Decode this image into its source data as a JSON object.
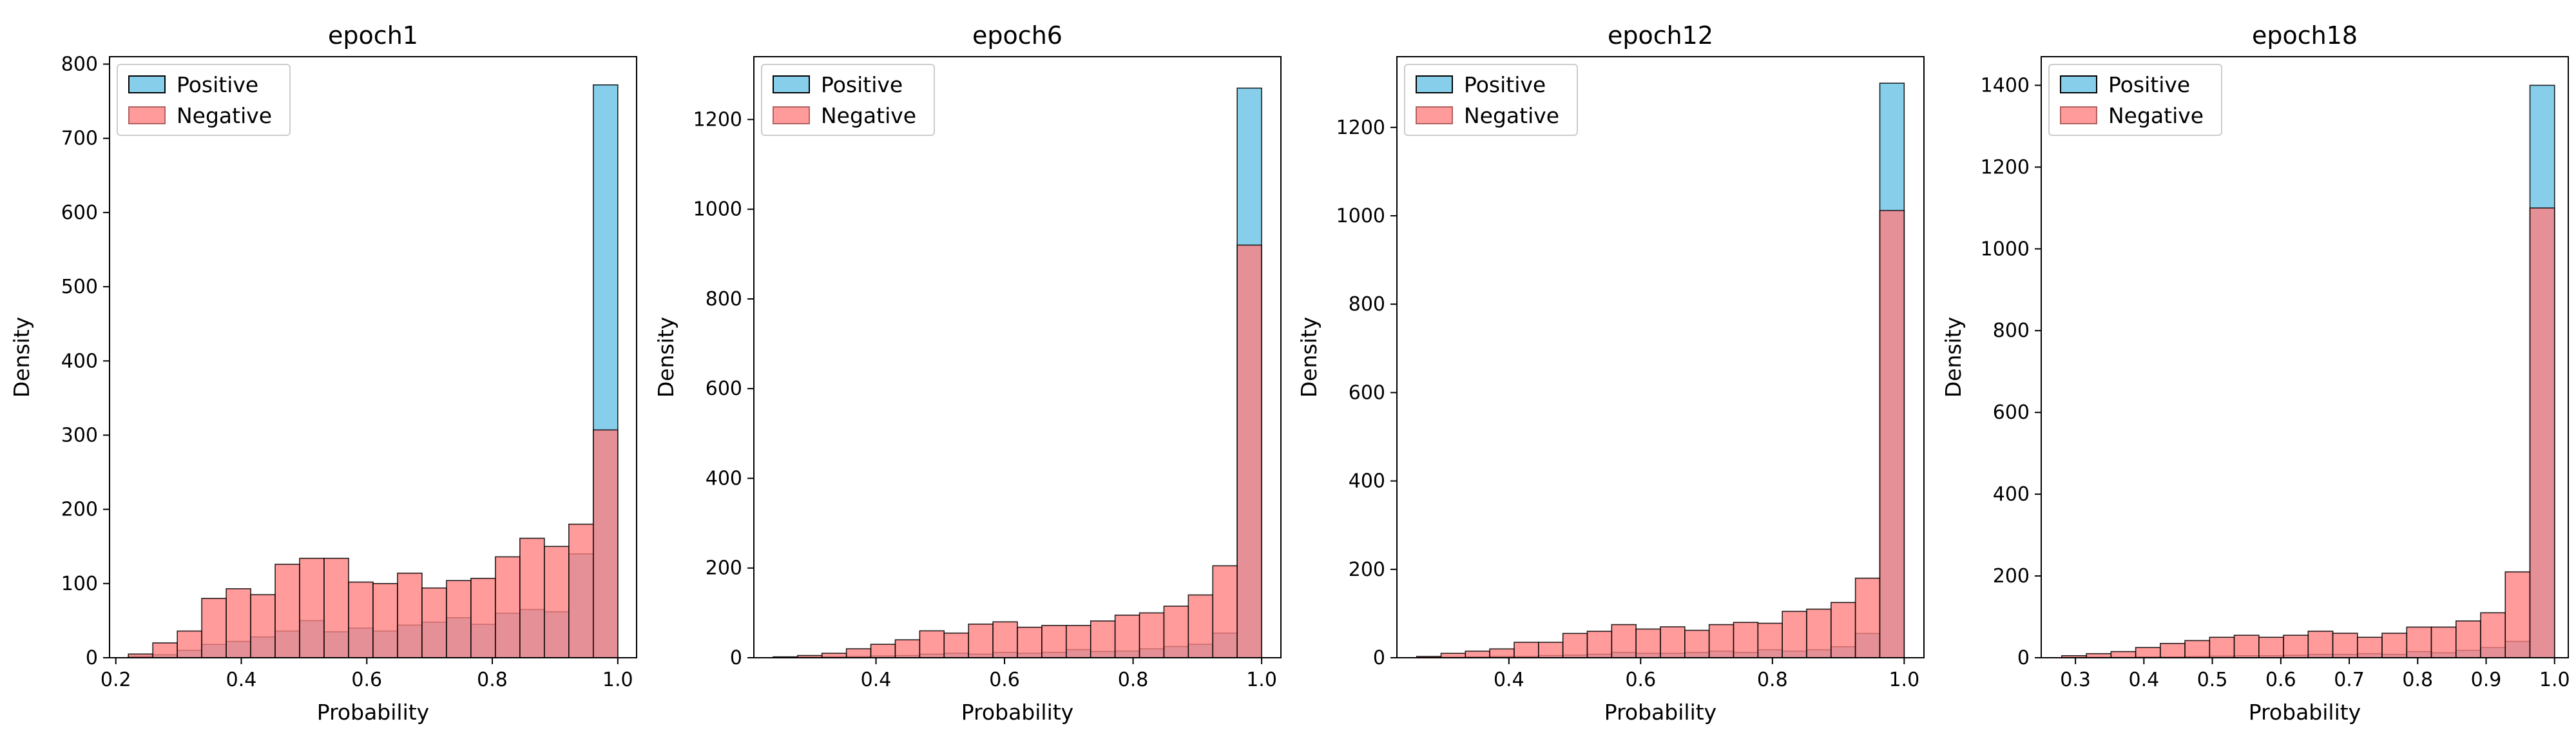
{
  "colors": {
    "positive_fill": "#87CEEB",
    "negative_fill": "#FF7F7F",
    "edge": "#000000"
  },
  "chart_data": [
    {
      "type": "bar",
      "subtype": "histogram",
      "title": "epoch1",
      "xlabel": "Probability",
      "ylabel": "Density",
      "xlim": [
        0.19,
        1.03
      ],
      "ylim": [
        0,
        810
      ],
      "xticks": [
        0.2,
        0.4,
        0.6,
        0.8,
        1.0
      ],
      "xtick_labels": [
        "0.2",
        "0.4",
        "0.6",
        "0.8",
        "1.0"
      ],
      "yticks": [
        0,
        100,
        200,
        300,
        400,
        500,
        600,
        700,
        800
      ],
      "legend": "top-left",
      "bin_edges": [
        0.22,
        0.259,
        0.298,
        0.337,
        0.376,
        0.415,
        0.454,
        0.493,
        0.532,
        0.571,
        0.61,
        0.649,
        0.688,
        0.727,
        0.766,
        0.805,
        0.844,
        0.883,
        0.922,
        0.961,
        1.0
      ],
      "series": [
        {
          "name": "Positive",
          "values": [
            2,
            4,
            10,
            18,
            22,
            28,
            36,
            50,
            35,
            40,
            36,
            44,
            48,
            54,
            45,
            60,
            65,
            62,
            140,
            772
          ]
        },
        {
          "name": "Negative",
          "values": [
            5,
            20,
            36,
            80,
            93,
            85,
            126,
            134,
            134,
            102,
            100,
            114,
            94,
            104,
            107,
            136,
            161,
            150,
            180,
            307
          ]
        }
      ]
    },
    {
      "type": "bar",
      "subtype": "histogram",
      "title": "epoch6",
      "xlabel": "Probability",
      "ylabel": "Density",
      "xlim": [
        0.21,
        1.03
      ],
      "ylim": [
        0,
        1340
      ],
      "xticks": [
        0.4,
        0.6,
        0.8,
        1.0
      ],
      "xtick_labels": [
        "0.4",
        "0.6",
        "0.8",
        "1.0"
      ],
      "yticks": [
        0,
        200,
        400,
        600,
        800,
        1000,
        1200
      ],
      "legend": "top-left",
      "bin_edges": [
        0.24,
        0.278,
        0.316,
        0.354,
        0.392,
        0.43,
        0.468,
        0.506,
        0.544,
        0.582,
        0.62,
        0.658,
        0.696,
        0.734,
        0.772,
        0.81,
        0.848,
        0.886,
        0.924,
        0.962,
        1.0
      ],
      "series": [
        {
          "name": "Positive",
          "values": [
            0,
            1,
            2,
            3,
            4,
            5,
            8,
            10,
            8,
            12,
            10,
            12,
            18,
            14,
            15,
            20,
            25,
            30,
            55,
            1270
          ]
        },
        {
          "name": "Negative",
          "values": [
            2,
            5,
            10,
            20,
            30,
            40,
            60,
            55,
            75,
            80,
            68,
            72,
            72,
            82,
            95,
            100,
            115,
            140,
            205,
            920
          ]
        }
      ]
    },
    {
      "type": "bar",
      "subtype": "histogram",
      "title": "epoch12",
      "xlabel": "Probability",
      "ylabel": "Density",
      "xlim": [
        0.23,
        1.03
      ],
      "ylim": [
        0,
        1360
      ],
      "xticks": [
        0.4,
        0.6,
        0.8,
        1.0
      ],
      "xtick_labels": [
        "0.4",
        "0.6",
        "0.8",
        "1.0"
      ],
      "yticks": [
        0,
        200,
        400,
        600,
        800,
        1000,
        1200
      ],
      "legend": "top-left",
      "bin_edges": [
        0.26,
        0.297,
        0.334,
        0.371,
        0.408,
        0.445,
        0.482,
        0.519,
        0.556,
        0.593,
        0.63,
        0.667,
        0.704,
        0.741,
        0.778,
        0.815,
        0.852,
        0.889,
        0.926,
        0.963,
        1.0
      ],
      "series": [
        {
          "name": "Positive",
          "values": [
            0,
            1,
            2,
            3,
            3,
            5,
            6,
            8,
            12,
            10,
            10,
            12,
            15,
            12,
            18,
            15,
            18,
            25,
            55,
            1300
          ]
        },
        {
          "name": "Negative",
          "values": [
            3,
            10,
            15,
            20,
            35,
            35,
            55,
            60,
            75,
            65,
            70,
            62,
            75,
            80,
            78,
            105,
            110,
            125,
            180,
            1012
          ]
        }
      ]
    },
    {
      "type": "bar",
      "subtype": "histogram",
      "title": "epoch18",
      "xlabel": "Probability",
      "ylabel": "Density",
      "xlim": [
        0.25,
        1.02
      ],
      "ylim": [
        0,
        1470
      ],
      "xticks": [
        0.3,
        0.4,
        0.5,
        0.6,
        0.7,
        0.8,
        0.9,
        1.0
      ],
      "xtick_labels": [
        "0.3",
        "0.4",
        "0.5",
        "0.6",
        "0.7",
        "0.8",
        "0.9",
        "1.0"
      ],
      "yticks": [
        0,
        200,
        400,
        600,
        800,
        1000,
        1200,
        1400
      ],
      "legend": "top-left",
      "bin_edges": [
        0.28,
        0.316,
        0.352,
        0.388,
        0.424,
        0.46,
        0.496,
        0.532,
        0.568,
        0.604,
        0.64,
        0.676,
        0.712,
        0.748,
        0.784,
        0.82,
        0.856,
        0.892,
        0.928,
        0.964,
        1.0
      ],
      "series": [
        {
          "name": "Positive",
          "values": [
            0,
            1,
            1,
            2,
            2,
            3,
            4,
            5,
            5,
            6,
            8,
            8,
            10,
            8,
            15,
            12,
            18,
            25,
            40,
            1400
          ]
        },
        {
          "name": "Negative",
          "values": [
            5,
            10,
            15,
            25,
            35,
            42,
            50,
            55,
            50,
            55,
            65,
            60,
            50,
            60,
            75,
            75,
            90,
            110,
            210,
            1100
          ]
        }
      ]
    }
  ]
}
